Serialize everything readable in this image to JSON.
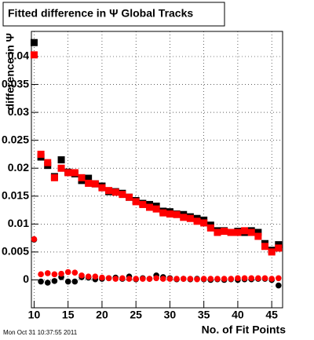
{
  "chart_data": {
    "type": "scatter",
    "title": "Fitted difference in Ψ Global Tracks",
    "x_label": "No. of Fit Points",
    "y_label": "difference in Ψ",
    "footer": "Mon Oct 31 10:37:55 2011",
    "x": [
      10,
      11,
      12,
      13,
      14,
      15,
      16,
      17,
      18,
      19,
      20,
      21,
      22,
      23,
      24,
      25,
      26,
      27,
      28,
      29,
      30,
      31,
      32,
      33,
      34,
      35,
      36,
      37,
      38,
      39,
      40,
      41,
      42,
      43,
      44,
      45,
      46
    ],
    "series": [
      {
        "color": "#000000",
        "marker": "square",
        "values": [
          0.0425,
          0.022,
          0.0205,
          0.0185,
          0.0215,
          0.0193,
          0.019,
          0.0178,
          0.0182,
          0.0172,
          0.0168,
          0.0158,
          0.0158,
          0.0155,
          0.0148,
          0.0142,
          0.0137,
          0.0135,
          0.0132,
          0.0123,
          0.0122,
          0.0118,
          0.0117,
          0.0113,
          0.011,
          0.0107,
          0.0098,
          0.0088,
          0.0088,
          0.0085,
          0.0087,
          0.0085,
          0.0088,
          0.0085,
          0.0065,
          0.0053,
          0.0063
        ]
      },
      {
        "color": "#ff0000",
        "marker": "square",
        "values": [
          0.0403,
          0.0225,
          0.021,
          0.0183,
          0.02,
          0.0192,
          0.0192,
          0.0183,
          0.0173,
          0.0172,
          0.0165,
          0.016,
          0.0157,
          0.0153,
          0.0148,
          0.014,
          0.0135,
          0.013,
          0.0127,
          0.012,
          0.0118,
          0.0117,
          0.0112,
          0.011,
          0.0105,
          0.0102,
          0.0093,
          0.0085,
          0.0087,
          0.0085,
          0.0085,
          0.0088,
          0.0085,
          0.0078,
          0.006,
          0.005,
          0.0057
        ]
      },
      {
        "color": "#000000",
        "marker": "circle",
        "values": [
          0.0072,
          -0.0003,
          -0.0005,
          -0.0002,
          0.0005,
          -0.0003,
          -0.0003,
          0.0005,
          0.0004,
          0.0001,
          0.0002,
          0.0003,
          0.0004,
          0.0002,
          0.0006,
          0.0001,
          0.0003,
          0.0002,
          0.0008,
          0.0005,
          0.0003,
          0.0001,
          0.0002,
          0.0001,
          0.0002,
          0.0001,
          0.0,
          0.0001,
          0.0,
          0.0001,
          0.0,
          0.0001,
          0.0001,
          0.0002,
          0.0002,
          0.0,
          -0.001
        ]
      },
      {
        "color": "#ff0000",
        "marker": "circle",
        "values": [
          0.0073,
          0.001,
          0.0012,
          0.001,
          0.0011,
          0.0014,
          0.0013,
          0.0008,
          0.0006,
          0.0006,
          0.0004,
          0.0003,
          0.0002,
          0.0003,
          0.0002,
          0.0002,
          0.0002,
          0.0002,
          0.0003,
          0.0002,
          0.0002,
          0.0002,
          0.0002,
          0.0002,
          0.0001,
          0.0002,
          0.0002,
          0.0002,
          0.0002,
          0.0002,
          0.0003,
          0.0003,
          0.0003,
          0.0003,
          0.0003,
          0.0002,
          0.0003
        ]
      }
    ],
    "xlim": [
      9.6,
      46.6
    ],
    "ylim": [
      -0.005,
      0.0445
    ],
    "xticks": [
      10,
      15,
      20,
      25,
      30,
      35,
      40,
      45
    ],
    "yticks": [
      0,
      0.005,
      0.01,
      0.015,
      0.02,
      0.025,
      0.03,
      0.035,
      0.04
    ],
    "grid": true
  }
}
